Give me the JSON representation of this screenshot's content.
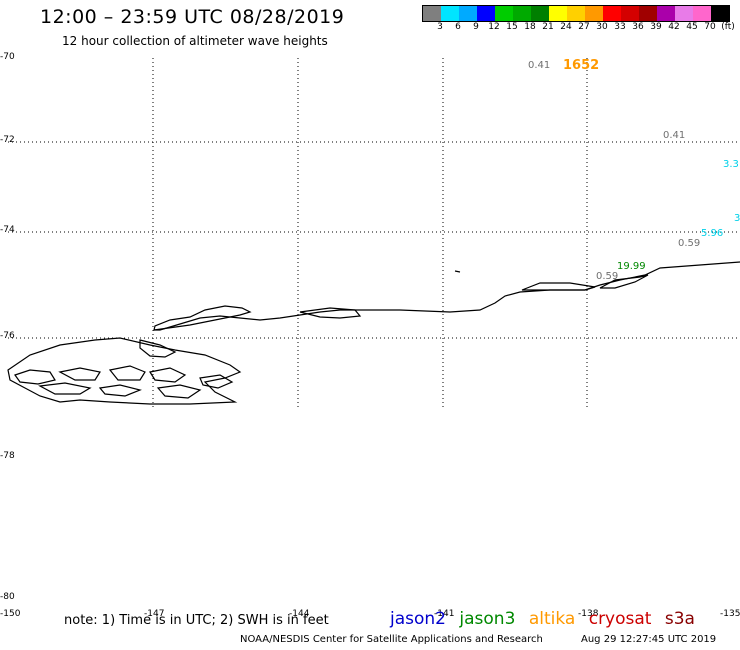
{
  "header": {
    "title": "12:00 – 23:59 UTC 08/28/2019",
    "subtitle": "12 hour collection of altimeter wave heights"
  },
  "colorbar": {
    "colors": [
      "#7f7f7f",
      "#00e5ff",
      "#00aaff",
      "#0000ff",
      "#00cc00",
      "#00aa00",
      "#007f00",
      "#ffff00",
      "#ffd000",
      "#ff9900",
      "#ff0000",
      "#d40000",
      "#a00000",
      "#aa00aa",
      "#e87be8",
      "#ff66cc",
      "#000000"
    ],
    "ticks": [
      "3",
      "6",
      "9",
      "12",
      "15",
      "18",
      "21",
      "24",
      "27",
      "30",
      "33",
      "36",
      "39",
      "42",
      "45",
      "70",
      "(ft)"
    ]
  },
  "axes": {
    "lat_labels": [
      "-70",
      "-72",
      "-74",
      "-76",
      "-78",
      "-80"
    ],
    "lon_labels": [
      "-150",
      "-147",
      "-144",
      "-141",
      "-138",
      "-135"
    ]
  },
  "annotations": [
    {
      "text": "0.41",
      "color": "#707070"
    },
    {
      "text": "1652",
      "color": "#ff9900"
    },
    {
      "text": "0.41",
      "color": "#707070"
    },
    {
      "text": "3.3",
      "color": "#00d0e8"
    },
    {
      "text": "5.96",
      "color": "#00d0e8"
    },
    {
      "text": "0.59",
      "color": "#707070"
    },
    {
      "text": "19.99",
      "color": "#008800"
    },
    {
      "text": "0.59",
      "color": "#707070"
    },
    {
      "text": "3",
      "color": "#00d0e8"
    }
  ],
  "footer": {
    "note": "note: 1) Time is in UTC; 2) SWH is in feet",
    "legend": [
      {
        "name": "jason2",
        "color": "#0000cc"
      },
      {
        "name": "jason3",
        "color": "#008800"
      },
      {
        "name": "altika",
        "color": "#ff9900"
      },
      {
        "name": "cryosat",
        "color": "#cc0000"
      },
      {
        "name": "s3a",
        "color": "#880000"
      }
    ],
    "credit": "NOAA/NESDIS Center for Satellite Applications and Research",
    "generated": "Aug 29 12:27:45 UTC 2019"
  }
}
